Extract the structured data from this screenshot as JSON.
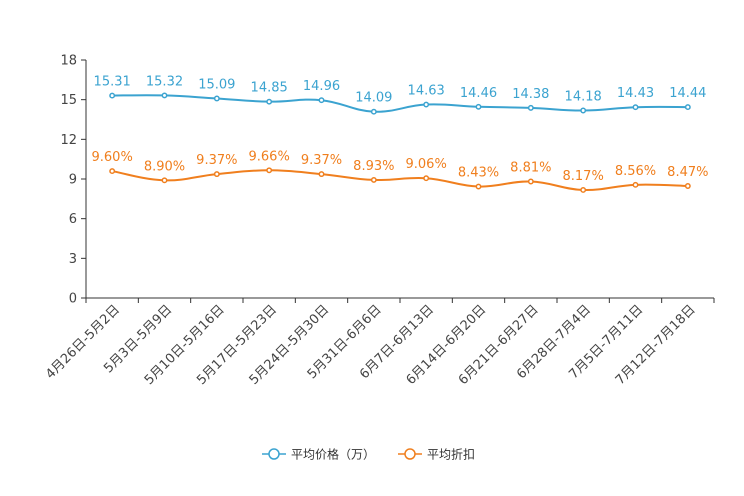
{
  "chart_data": {
    "type": "line",
    "categories": [
      "4月26日-5月2日",
      "5月3日-5月9日",
      "5月10日-5月16日",
      "5月17日-5月23日",
      "5月24日-5月30日",
      "5月31日-6月6日",
      "6月7日-6月13日",
      "6月14日-6月20日",
      "6月21日-6月27日",
      "6月28日-7月4日",
      "7月5日-7月11日",
      "7月12日-7月18日"
    ],
    "yticks": [
      "0",
      "3",
      "6",
      "9",
      "12",
      "15",
      "18"
    ],
    "ylim": [
      0,
      18
    ],
    "series": [
      {
        "name": "平均价格（万）",
        "color": "#3ba3d0",
        "values": [
          15.31,
          15.32,
          15.09,
          14.85,
          14.96,
          14.09,
          14.63,
          14.46,
          14.38,
          14.18,
          14.43,
          14.44
        ],
        "labels": [
          "15.31",
          "15.32",
          "15.09",
          "14.85",
          "14.96",
          "14.09",
          "14.63",
          "14.46",
          "14.38",
          "14.18",
          "14.43",
          "14.44"
        ]
      },
      {
        "name": "平均折扣",
        "color": "#f07f1e",
        "values": [
          9.6,
          8.9,
          9.37,
          9.66,
          9.37,
          8.93,
          9.06,
          8.43,
          8.81,
          8.17,
          8.56,
          8.47
        ],
        "labels": [
          "9.60%",
          "8.90%",
          "9.37%",
          "9.66%",
          "9.37%",
          "8.93%",
          "9.06%",
          "8.43%",
          "8.81%",
          "8.17%",
          "8.56%",
          "8.47%"
        ]
      }
    ]
  }
}
